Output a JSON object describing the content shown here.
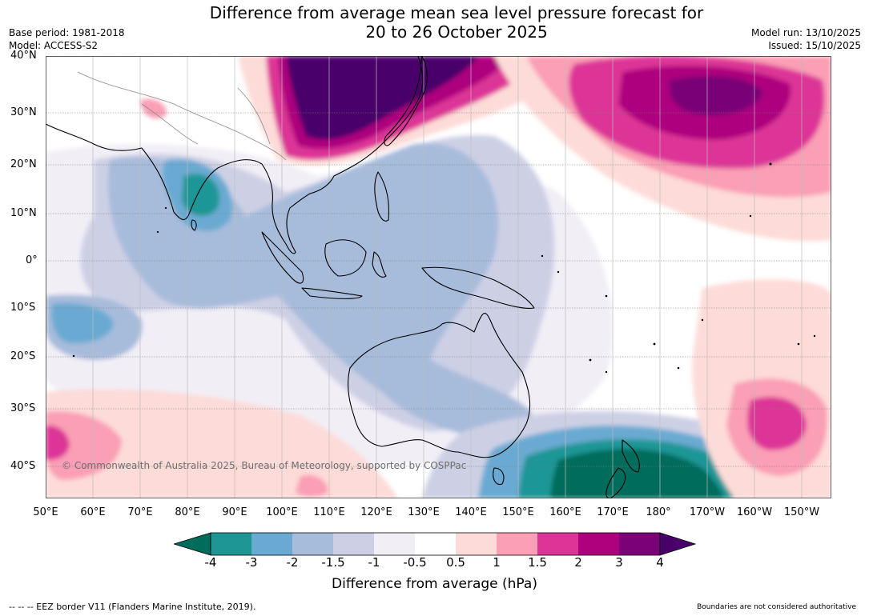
{
  "header": {
    "title_line1": "Difference from average mean sea level pressure forecast for",
    "title_line2": "20 to 26 October 2025",
    "base_period": "Base period: 1981-2018",
    "model": "Model: ACCESS-S2",
    "model_run": "Model run: 13/10/2025",
    "issued": "Issued: 15/10/2025"
  },
  "map": {
    "lat_labels": [
      "40°N",
      "30°N",
      "20°N",
      "10°N",
      "0°",
      "10°S",
      "20°S",
      "30°S",
      "40°S"
    ],
    "lon_labels": [
      "50°E",
      "60°E",
      "70°E",
      "80°E",
      "90°E",
      "100°E",
      "110°E",
      "120°E",
      "130°E",
      "140°E",
      "150°E",
      "160°E",
      "170°E",
      "180°",
      "170°W",
      "160°W",
      "150°W"
    ],
    "copyright": "© Commonwealth of Australia 2025, Bureau of Meteorology, supported by COSPPac"
  },
  "legend": {
    "tick_labels": [
      "-4",
      "-3",
      "-2",
      "-1.5",
      "-1",
      "-0.5",
      "0.5",
      "1",
      "1.5",
      "2",
      "3",
      "4"
    ],
    "colors": [
      "#006c5b",
      "#1f9696",
      "#6aaad2",
      "#a7bbdb",
      "#cdd0e5",
      "#f1eef6",
      "#ffffff",
      "#fddbd8",
      "#fa9fb5",
      "#dd3497",
      "#ae017e",
      "#7a0177",
      "#49006a"
    ],
    "label": "Difference from average (hPa)"
  },
  "footer": {
    "eez_note": "-- -- -- EEZ border V11 (Flanders Marine Institute, 2019).",
    "boundaries_note": "Boundaries are not considered authoritative"
  }
}
